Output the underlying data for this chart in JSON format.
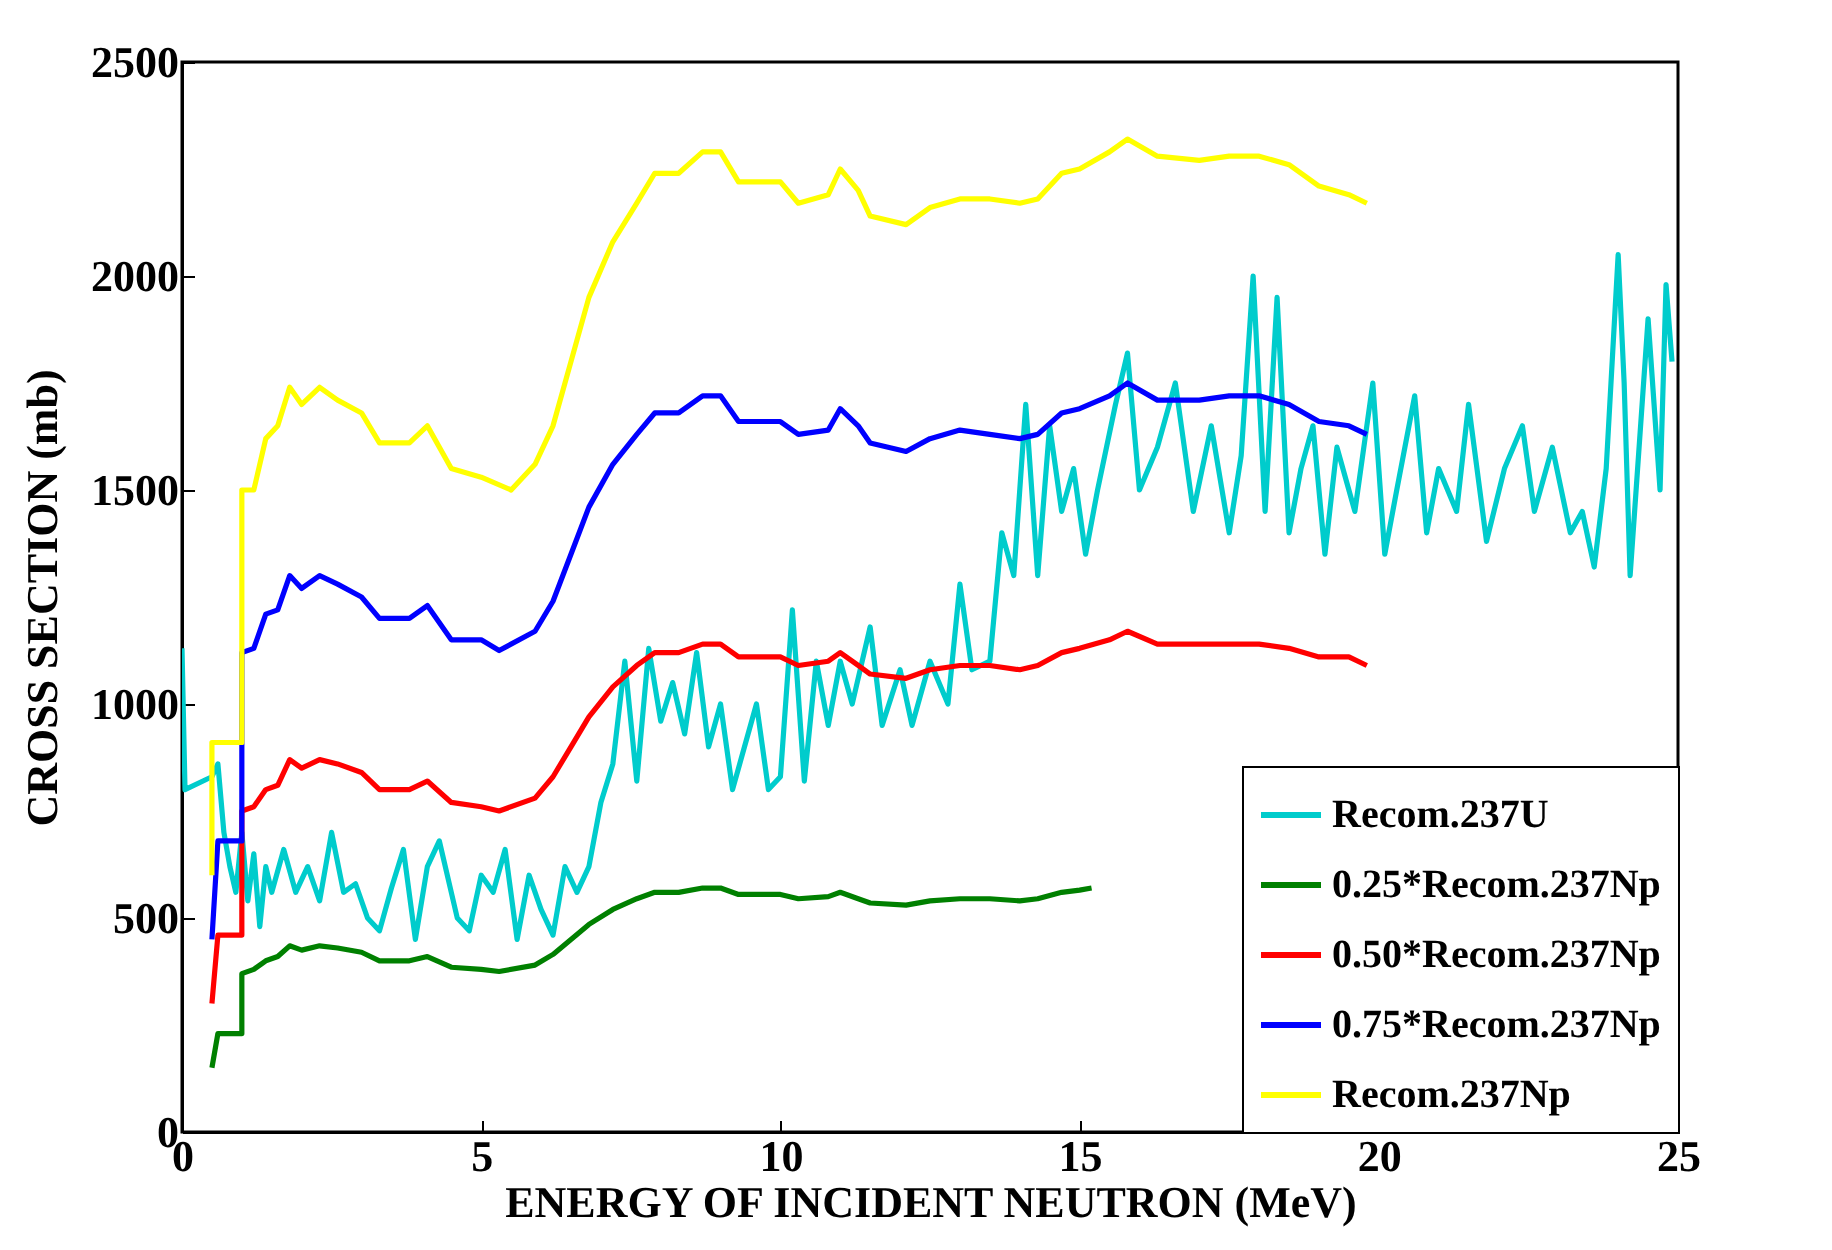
{
  "chart_data": {
    "type": "line",
    "xlabel": "ENERGY OF INCIDENT NEUTRON (MeV)",
    "ylabel": "CROSS SECTION (mb)",
    "xlim": [
      0,
      25
    ],
    "ylim": [
      0,
      2500
    ],
    "xticks": [
      0,
      5,
      10,
      15,
      20,
      25
    ],
    "yticks": [
      0,
      500,
      1000,
      1500,
      2000,
      2500
    ],
    "legend": "bottom right",
    "series": [
      {
        "name": "Recom.237U",
        "color": "#00cccc",
        "x": [
          0,
          0.05,
          0.5,
          0.6,
          0.7,
          0.8,
          0.9,
          1.0,
          1.1,
          1.2,
          1.3,
          1.4,
          1.5,
          1.7,
          1.9,
          2.1,
          2.3,
          2.5,
          2.7,
          2.9,
          3.1,
          3.3,
          3.5,
          3.7,
          3.9,
          4.1,
          4.3,
          4.6,
          4.8,
          5.0,
          5.2,
          5.4,
          5.6,
          5.8,
          6.0,
          6.2,
          6.4,
          6.6,
          6.8,
          7.0,
          7.2,
          7.4,
          7.6,
          7.8,
          8.0,
          8.2,
          8.4,
          8.6,
          8.8,
          9.0,
          9.2,
          9.4,
          9.6,
          9.8,
          10.0,
          10.2,
          10.4,
          10.6,
          10.8,
          11.0,
          11.2,
          11.5,
          11.7,
          12.0,
          12.2,
          12.5,
          12.8,
          13.0,
          13.2,
          13.5,
          13.7,
          13.9,
          14.1,
          14.3,
          14.5,
          14.7,
          14.9,
          15.1,
          15.3,
          15.6,
          15.8,
          16.0,
          16.3,
          16.6,
          16.9,
          17.2,
          17.5,
          17.7,
          17.9,
          18.1,
          18.3,
          18.5,
          18.7,
          18.9,
          19.1,
          19.3,
          19.6,
          19.9,
          20.1,
          20.3,
          20.6,
          20.8,
          21.0,
          21.3,
          21.5,
          21.8,
          22.1,
          22.4,
          22.6,
          22.9,
          23.2,
          23.4,
          23.6,
          23.8,
          24.0,
          24.1,
          24.2,
          24.4,
          24.5,
          24.7,
          24.8,
          24.9
        ],
        "values": [
          1130,
          800,
          830,
          860,
          700,
          620,
          560,
          700,
          540,
          650,
          480,
          620,
          560,
          660,
          560,
          620,
          540,
          700,
          560,
          580,
          500,
          470,
          570,
          660,
          450,
          620,
          680,
          500,
          470,
          600,
          560,
          660,
          450,
          600,
          520,
          460,
          620,
          560,
          620,
          770,
          860,
          1100,
          820,
          1130,
          960,
          1050,
          930,
          1120,
          900,
          1000,
          800,
          900,
          1000,
          800,
          830,
          1220,
          820,
          1100,
          950,
          1100,
          1000,
          1180,
          950,
          1080,
          950,
          1100,
          1000,
          1280,
          1080,
          1100,
          1400,
          1300,
          1700,
          1300,
          1650,
          1450,
          1550,
          1350,
          1500,
          1700,
          1820,
          1500,
          1600,
          1750,
          1450,
          1650,
          1400,
          1580,
          2000,
          1450,
          1950,
          1400,
          1550,
          1650,
          1350,
          1600,
          1450,
          1750,
          1350,
          1500,
          1720,
          1400,
          1550,
          1450,
          1700,
          1380,
          1550,
          1650,
          1450,
          1600,
          1400,
          1450,
          1320,
          1550,
          2050,
          1750,
          1300,
          1700,
          1900,
          1500,
          1980,
          1800
        ]
      },
      {
        "name": "0.25*Recom.237Np",
        "color": "#008000",
        "x": [
          0.5,
          0.6,
          1.0,
          1.0,
          1.2,
          1.4,
          1.6,
          1.8,
          2.0,
          2.3,
          2.6,
          3.0,
          3.3,
          3.8,
          4.1,
          4.5,
          5.0,
          5.3,
          5.9,
          6.2,
          6.5,
          6.8,
          7.2,
          7.6,
          7.9,
          8.3,
          8.7,
          9.0,
          9.3,
          10.0,
          10.3,
          10.8,
          11.0,
          11.3,
          11.5,
          12.1,
          12.5,
          13.0,
          13.5,
          14.0,
          14.3,
          14.7,
          15.0,
          15.2
        ],
        "values": [
          150,
          230,
          230,
          370,
          380,
          400,
          410,
          435,
          425,
          435,
          430,
          420,
          400,
          400,
          410,
          385,
          380,
          375,
          390,
          415,
          450,
          485,
          520,
          545,
          560,
          560,
          570,
          570,
          555,
          555,
          545,
          550,
          560,
          545,
          535,
          530,
          540,
          545,
          545,
          540,
          545,
          560,
          565,
          570
        ]
      },
      {
        "name": "0.50*Recom.237Np",
        "color": "#ff0000",
        "x": [
          0.5,
          0.6,
          1.0,
          1.0,
          1.2,
          1.4,
          1.6,
          1.8,
          2.0,
          2.3,
          2.6,
          3.0,
          3.3,
          3.8,
          4.1,
          4.5,
          5.0,
          5.3,
          5.9,
          6.2,
          6.5,
          6.8,
          7.2,
          7.6,
          7.9,
          8.3,
          8.7,
          9.0,
          9.3,
          10.0,
          10.3,
          10.8,
          11.0,
          11.3,
          11.5,
          12.1,
          12.5,
          13.0,
          13.5,
          14.0,
          14.3,
          14.7,
          15.0,
          15.5,
          15.8,
          16.3,
          17.0,
          17.5,
          18.0,
          18.5,
          19.0,
          19.5,
          19.8
        ],
        "values": [
          300,
          460,
          460,
          750,
          760,
          800,
          810,
          870,
          850,
          870,
          860,
          840,
          800,
          800,
          820,
          770,
          760,
          750,
          780,
          830,
          900,
          970,
          1040,
          1090,
          1120,
          1120,
          1140,
          1140,
          1110,
          1110,
          1090,
          1100,
          1120,
          1090,
          1070,
          1060,
          1080,
          1090,
          1090,
          1080,
          1090,
          1120,
          1130,
          1150,
          1170,
          1140,
          1140,
          1140,
          1140,
          1130,
          1110,
          1110,
          1090
        ]
      },
      {
        "name": "0.75*Recom.237Np",
        "color": "#0000ff",
        "x": [
          0.5,
          0.6,
          1.0,
          1.0,
          1.2,
          1.4,
          1.6,
          1.8,
          2.0,
          2.3,
          2.6,
          3.0,
          3.3,
          3.8,
          4.1,
          4.5,
          5.0,
          5.3,
          5.9,
          6.2,
          6.5,
          6.8,
          7.2,
          7.6,
          7.9,
          8.3,
          8.7,
          9.0,
          9.3,
          10.0,
          10.3,
          10.8,
          11.0,
          11.3,
          11.5,
          12.1,
          12.5,
          13.0,
          13.5,
          14.0,
          14.3,
          14.7,
          15.0,
          15.5,
          15.8,
          16.3,
          17.0,
          17.5,
          18.0,
          18.5,
          19.0,
          19.5,
          19.8
        ],
        "values": [
          450,
          680,
          680,
          1120,
          1130,
          1210,
          1220,
          1300,
          1270,
          1300,
          1280,
          1250,
          1200,
          1200,
          1230,
          1150,
          1150,
          1125,
          1170,
          1240,
          1350,
          1460,
          1560,
          1630,
          1680,
          1680,
          1720,
          1720,
          1660,
          1660,
          1630,
          1640,
          1690,
          1650,
          1610,
          1590,
          1620,
          1640,
          1630,
          1620,
          1630,
          1680,
          1690,
          1720,
          1750,
          1710,
          1710,
          1720,
          1720,
          1700,
          1660,
          1650,
          1630
        ]
      },
      {
        "name": "Recom.237Np",
        "color": "#ffff00",
        "x": [
          0.5,
          0.5,
          1.0,
          1.0,
          1.2,
          1.4,
          1.6,
          1.8,
          2.0,
          2.3,
          2.6,
          3.0,
          3.3,
          3.8,
          4.1,
          4.5,
          5.0,
          5.5,
          5.9,
          6.2,
          6.5,
          6.8,
          7.2,
          7.6,
          7.9,
          8.3,
          8.7,
          9.0,
          9.3,
          10.0,
          10.3,
          10.8,
          11.0,
          11.3,
          11.5,
          12.1,
          12.5,
          13.0,
          13.5,
          14.0,
          14.3,
          14.7,
          15.0,
          15.5,
          15.8,
          16.3,
          17.0,
          17.5,
          18.0,
          18.5,
          19.0,
          19.5,
          19.8
        ],
        "values": [
          600,
          910,
          910,
          1500,
          1500,
          1620,
          1650,
          1740,
          1700,
          1740,
          1710,
          1680,
          1610,
          1610,
          1650,
          1550,
          1530,
          1500,
          1560,
          1650,
          1800,
          1950,
          2080,
          2170,
          2240,
          2240,
          2290,
          2290,
          2220,
          2220,
          2170,
          2190,
          2250,
          2200,
          2140,
          2120,
          2160,
          2180,
          2180,
          2170,
          2180,
          2240,
          2250,
          2290,
          2320,
          2280,
          2270,
          2280,
          2280,
          2260,
          2210,
          2190,
          2170
        ]
      }
    ]
  }
}
